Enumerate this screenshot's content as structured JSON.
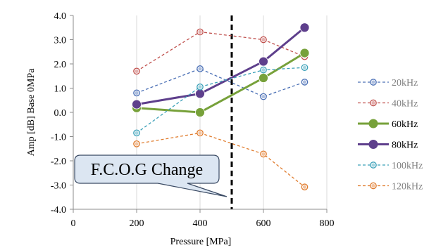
{
  "chart_data": {
    "type": "line",
    "xlabel": "Pressure [MPa]",
    "ylabel": "Amp [dB] Base 0MPa",
    "xlim": [
      0,
      800
    ],
    "ylim": [
      -4,
      4
    ],
    "x_ticks": [
      "0",
      "200",
      "400",
      "600",
      "800"
    ],
    "y_ticks": [
      "-4.0",
      "-3.0",
      "-2.0",
      "-1.0",
      "0.0",
      "1.0",
      "2.0",
      "3.0",
      "4.0"
    ],
    "grid": "vertical",
    "legend_position": "right",
    "x": [
      200,
      400,
      600,
      730
    ],
    "series": [
      {
        "name": "20kHz",
        "values": [
          0.8,
          1.8,
          0.65,
          1.25
        ],
        "color": "#4a6fb5",
        "dash": true,
        "bold": false
      },
      {
        "name": "40kHz",
        "values": [
          1.7,
          3.32,
          3.0,
          2.3
        ],
        "color": "#c0504d",
        "dash": true,
        "bold": false
      },
      {
        "name": "60kHz",
        "values": [
          0.18,
          0.0,
          1.42,
          2.45
        ],
        "color": "#77a13a",
        "dash": false,
        "bold": true
      },
      {
        "name": "80kHz",
        "values": [
          0.33,
          0.77,
          2.1,
          3.5
        ],
        "color": "#5e3f8c",
        "dash": false,
        "bold": true
      },
      {
        "name": "100kHz",
        "values": [
          -0.85,
          1.05,
          1.75,
          1.85
        ],
        "color": "#3aa0b8",
        "dash": true,
        "bold": false
      },
      {
        "name": "120kHz",
        "values": [
          -1.3,
          -0.85,
          -1.72,
          -3.08
        ],
        "color": "#e07b2c",
        "dash": true,
        "bold": false
      }
    ],
    "reference_line": {
      "x": 500
    },
    "annotation": {
      "text": "F.C.O.G Change"
    }
  }
}
